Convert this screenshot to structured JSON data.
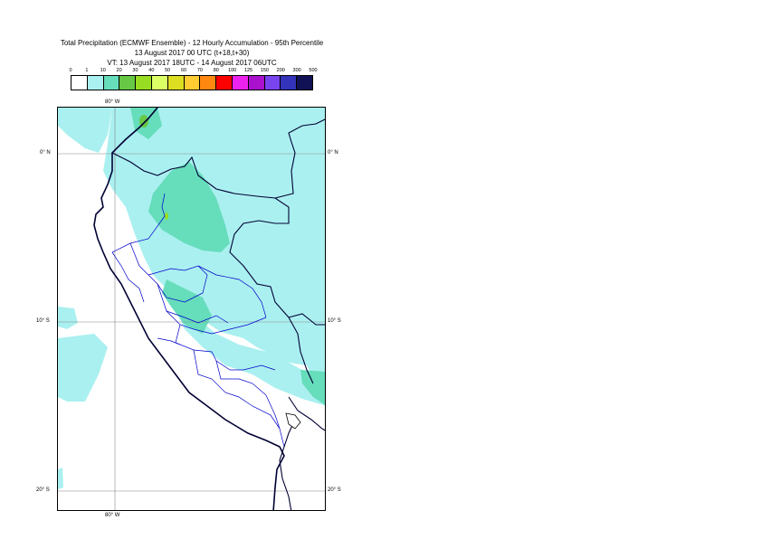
{
  "title": {
    "line1": "Total Precipitation (ECMWF Ensemble) - 12 Hourly Accumulation - 95th Percentile",
    "line2": "13 August 2017 00 UTC (t+18,t+30)",
    "line3": "VT: 13 August 2017 18UTC - 14 August 2017 06UTC"
  },
  "legend": {
    "labels": [
      "0",
      "1",
      "10",
      "20",
      "30",
      "40",
      "50",
      "60",
      "70",
      "80",
      "100",
      "125",
      "150",
      "200",
      "300",
      "500"
    ],
    "colors": [
      "#ffffff",
      "#aaf0f0",
      "#66ddbb",
      "#66c844",
      "#99dd22",
      "#ddff66",
      "#dddd22",
      "#ffcc33",
      "#ff8811",
      "#ff0000",
      "#ee22ee",
      "#aa11cc",
      "#7744ee",
      "#3333bb",
      "#111155"
    ]
  },
  "map": {
    "lon_label_top": "80° W",
    "lon_label_bottom": "80° W",
    "lat_labels": [
      "0° N",
      "10° S",
      "20° S"
    ],
    "precip_color": "#aaf0f0",
    "heavy_color": "#66ddbb",
    "border_color": "#000033",
    "region_color": "#0000cc"
  }
}
